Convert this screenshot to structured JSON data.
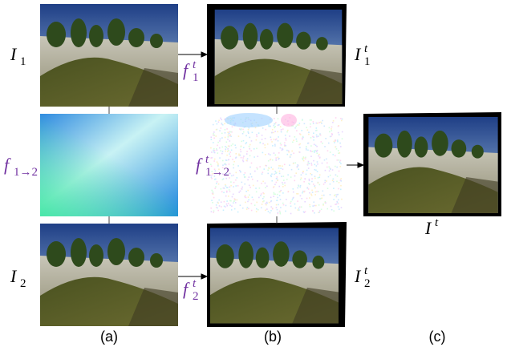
{
  "figure": {
    "left_column": {
      "top_label": {
        "base": "I",
        "sub": "1"
      },
      "flow_label": {
        "base": "f",
        "sub": "1→2"
      },
      "bottom_label": {
        "base": "I",
        "sub": "2"
      },
      "caption": "(a)"
    },
    "middle_column": {
      "top_arrow_label": {
        "base": "f",
        "sub": "1",
        "sup": "t"
      },
      "top_label": {
        "base": "I",
        "sub": "1",
        "sup": "t"
      },
      "flow_label": {
        "base": "f",
        "sub": "1→2",
        "sup": "t"
      },
      "bottom_arrow_label": {
        "base": "f",
        "sub": "2",
        "sup": "t"
      },
      "bottom_label": {
        "base": "I",
        "sub": "2",
        "sup": "t"
      },
      "caption": "(b)"
    },
    "right_column": {
      "output_label": {
        "base": "I",
        "sup": "t"
      },
      "caption": "(c)"
    }
  }
}
